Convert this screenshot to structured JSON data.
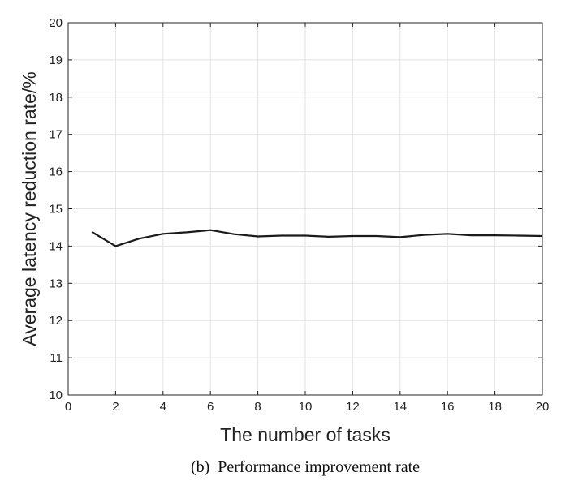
{
  "chart_data": {
    "type": "line",
    "title": "",
    "caption": "(b)  Performance improvement rate",
    "xlabel": "The number of tasks",
    "ylabel": "Average latency reduction rate/%",
    "xlim": [
      0,
      20
    ],
    "ylim": [
      10,
      20
    ],
    "xticks": [
      0,
      2,
      4,
      6,
      8,
      10,
      12,
      14,
      16,
      18,
      20
    ],
    "yticks": [
      10,
      11,
      12,
      13,
      14,
      15,
      16,
      17,
      18,
      19,
      20
    ],
    "grid": true,
    "series": [
      {
        "color": "#1a1a1a",
        "x": [
          1,
          2,
          3,
          4,
          5,
          6,
          7,
          8,
          9,
          10,
          11,
          12,
          13,
          14,
          15,
          16,
          17,
          18,
          19,
          20
        ],
        "y": [
          14.38,
          14.0,
          14.2,
          14.33,
          14.37,
          14.43,
          14.32,
          14.26,
          14.28,
          14.28,
          14.25,
          14.27,
          14.27,
          14.24,
          14.3,
          14.33,
          14.29,
          14.29,
          14.28,
          14.27
        ]
      }
    ]
  }
}
